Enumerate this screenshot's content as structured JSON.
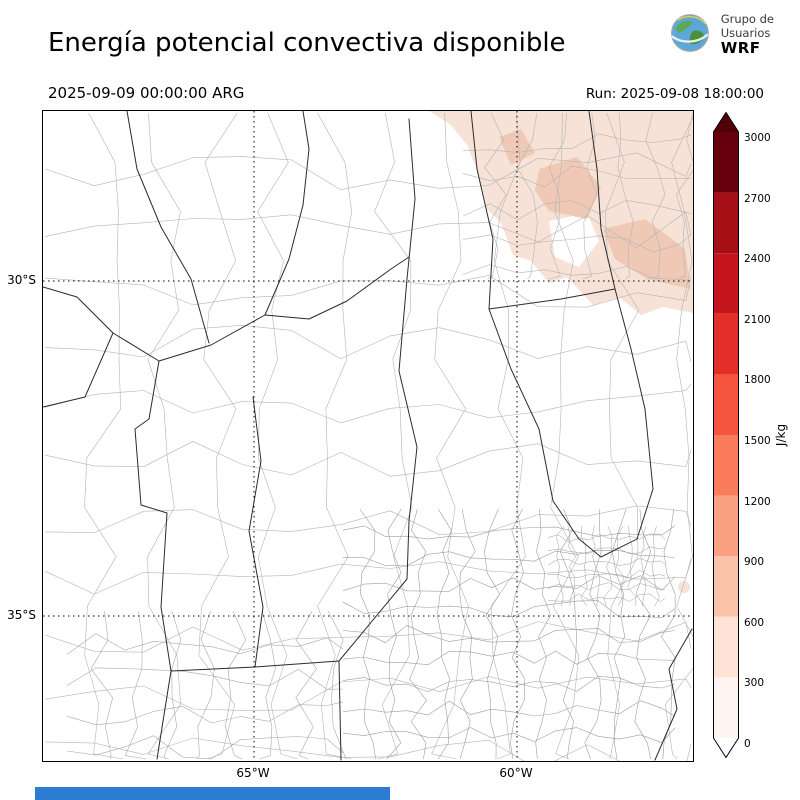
{
  "header": {
    "title": "Energía potencial convectiva disponible",
    "valid_time": "2025-09-09 00:00:00 ARG",
    "run_label": "Run: 2025-09-08 18:00:00"
  },
  "logo": {
    "line1": "Grupo de",
    "line2": "Usuarios",
    "line3": "WRF"
  },
  "axes": {
    "lat_ticks": [
      "30°S",
      "35°S"
    ],
    "lon_ticks": [
      "65°W",
      "60°W"
    ]
  },
  "colorbar": {
    "unit": "J/kg",
    "ticks": [
      "3000",
      "2700",
      "2400",
      "2100",
      "1800",
      "1500",
      "1200",
      "900",
      "600",
      "300",
      "0"
    ],
    "segment_colors": [
      "#67000d",
      "#a50f15",
      "#c5161c",
      "#e32f27",
      "#f5553d",
      "#fb7c5c",
      "#fca082",
      "#fcc3ab",
      "#fee3d6",
      "#fff5f0"
    ],
    "over_color": "#520008",
    "under_color": "#ffffff"
  },
  "overlay": {
    "cape_low_fill": "#f7e2d7",
    "cape_mid_fill": "#f0c9b6",
    "hole_fill": "#ffffff"
  },
  "footer": {
    "bar_color": "#2a7dd1"
  },
  "chart_data": {
    "type": "heatmap",
    "title": "Energía potencial convectiva disponible",
    "units": "J/kg",
    "scale_ticks": [
      0,
      300,
      600,
      900,
      1200,
      1500,
      1800,
      2100,
      2400,
      2700,
      3000
    ],
    "valid_time": "2025-09-09 00:00:00 ARG",
    "run": "2025-09-08 18:00:00",
    "lat_ticks": [
      "30°S",
      "35°S"
    ],
    "lon_ticks": [
      "65°W",
      "60°W"
    ],
    "shaded_region": {
      "location": "northeastern sector of domain",
      "approx_value_range_jkg": [
        300,
        600
      ]
    }
  }
}
